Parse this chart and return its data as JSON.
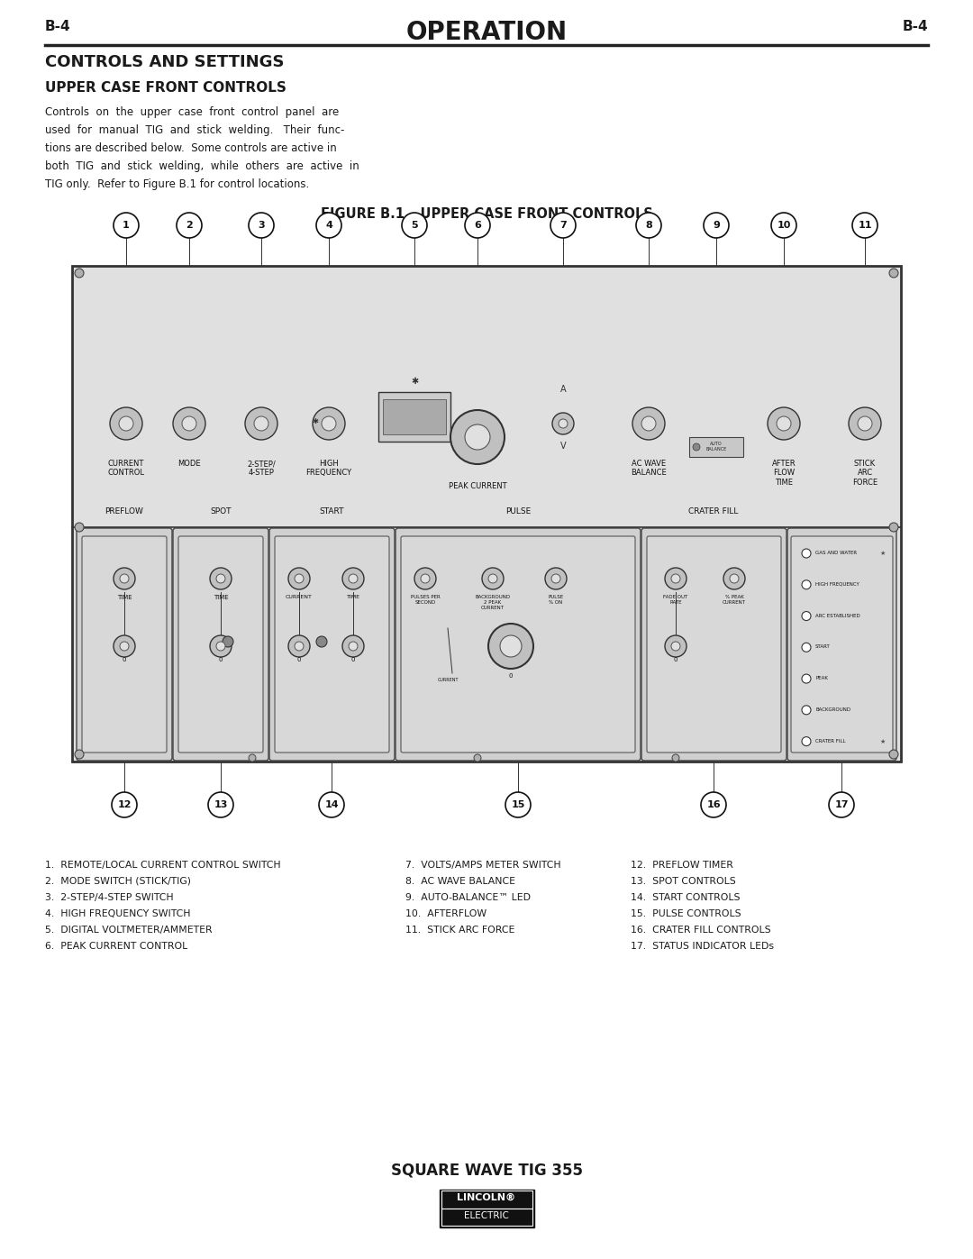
{
  "page_label": "B-4",
  "header_title": "OPERATION",
  "section_title": "CONTROLS AND SETTINGS",
  "subsection_title": "UPPER CASE FRONT CONTROLS",
  "body_text": [
    "Controls  on  the  upper  case  front  control  panel  are",
    "used  for  manual  TIG  and  stick  welding.   Their  func-",
    "tions are described below.  Some controls are active in",
    "both  TIG  and  stick  welding,  while  others  are  active  in",
    "TIG only.  Refer to Figure B.1 for control locations."
  ],
  "figure_title": "FIGURE B.1 – UPPER CASE FRONT CONTROLS",
  "legend_col1": [
    "1.  REMOTE/LOCAL CURRENT CONTROL SWITCH",
    "2.  MODE SWITCH (STICK/TIG)",
    "3.  2-STEP/4-STEP SWITCH",
    "4.  HIGH FREQUENCY SWITCH",
    "5.  DIGITAL VOLTMETER/AMMETER",
    "6.  PEAK CURRENT CONTROL"
  ],
  "legend_col2": [
    "7.  VOLTS/AMPS METER SWITCH",
    "8.  AC WAVE BALANCE",
    "9.  AUTO-BALANCE™ LED",
    "10.  AFTERFLOW",
    "11.  STICK ARC FORCE"
  ],
  "legend_col3": [
    "12.  PREFLOW TIMER",
    "13.  SPOT CONTROLS",
    "14.  START CONTROLS",
    "15.  PULSE CONTROLS",
    "16.  CRATER FILL CONTROLS",
    "17.  STATUS INDICATOR LEDs"
  ],
  "footer_title": "SQUARE WAVE TIG 355",
  "bg_color": "#ffffff",
  "text_color": "#1a1a1a"
}
